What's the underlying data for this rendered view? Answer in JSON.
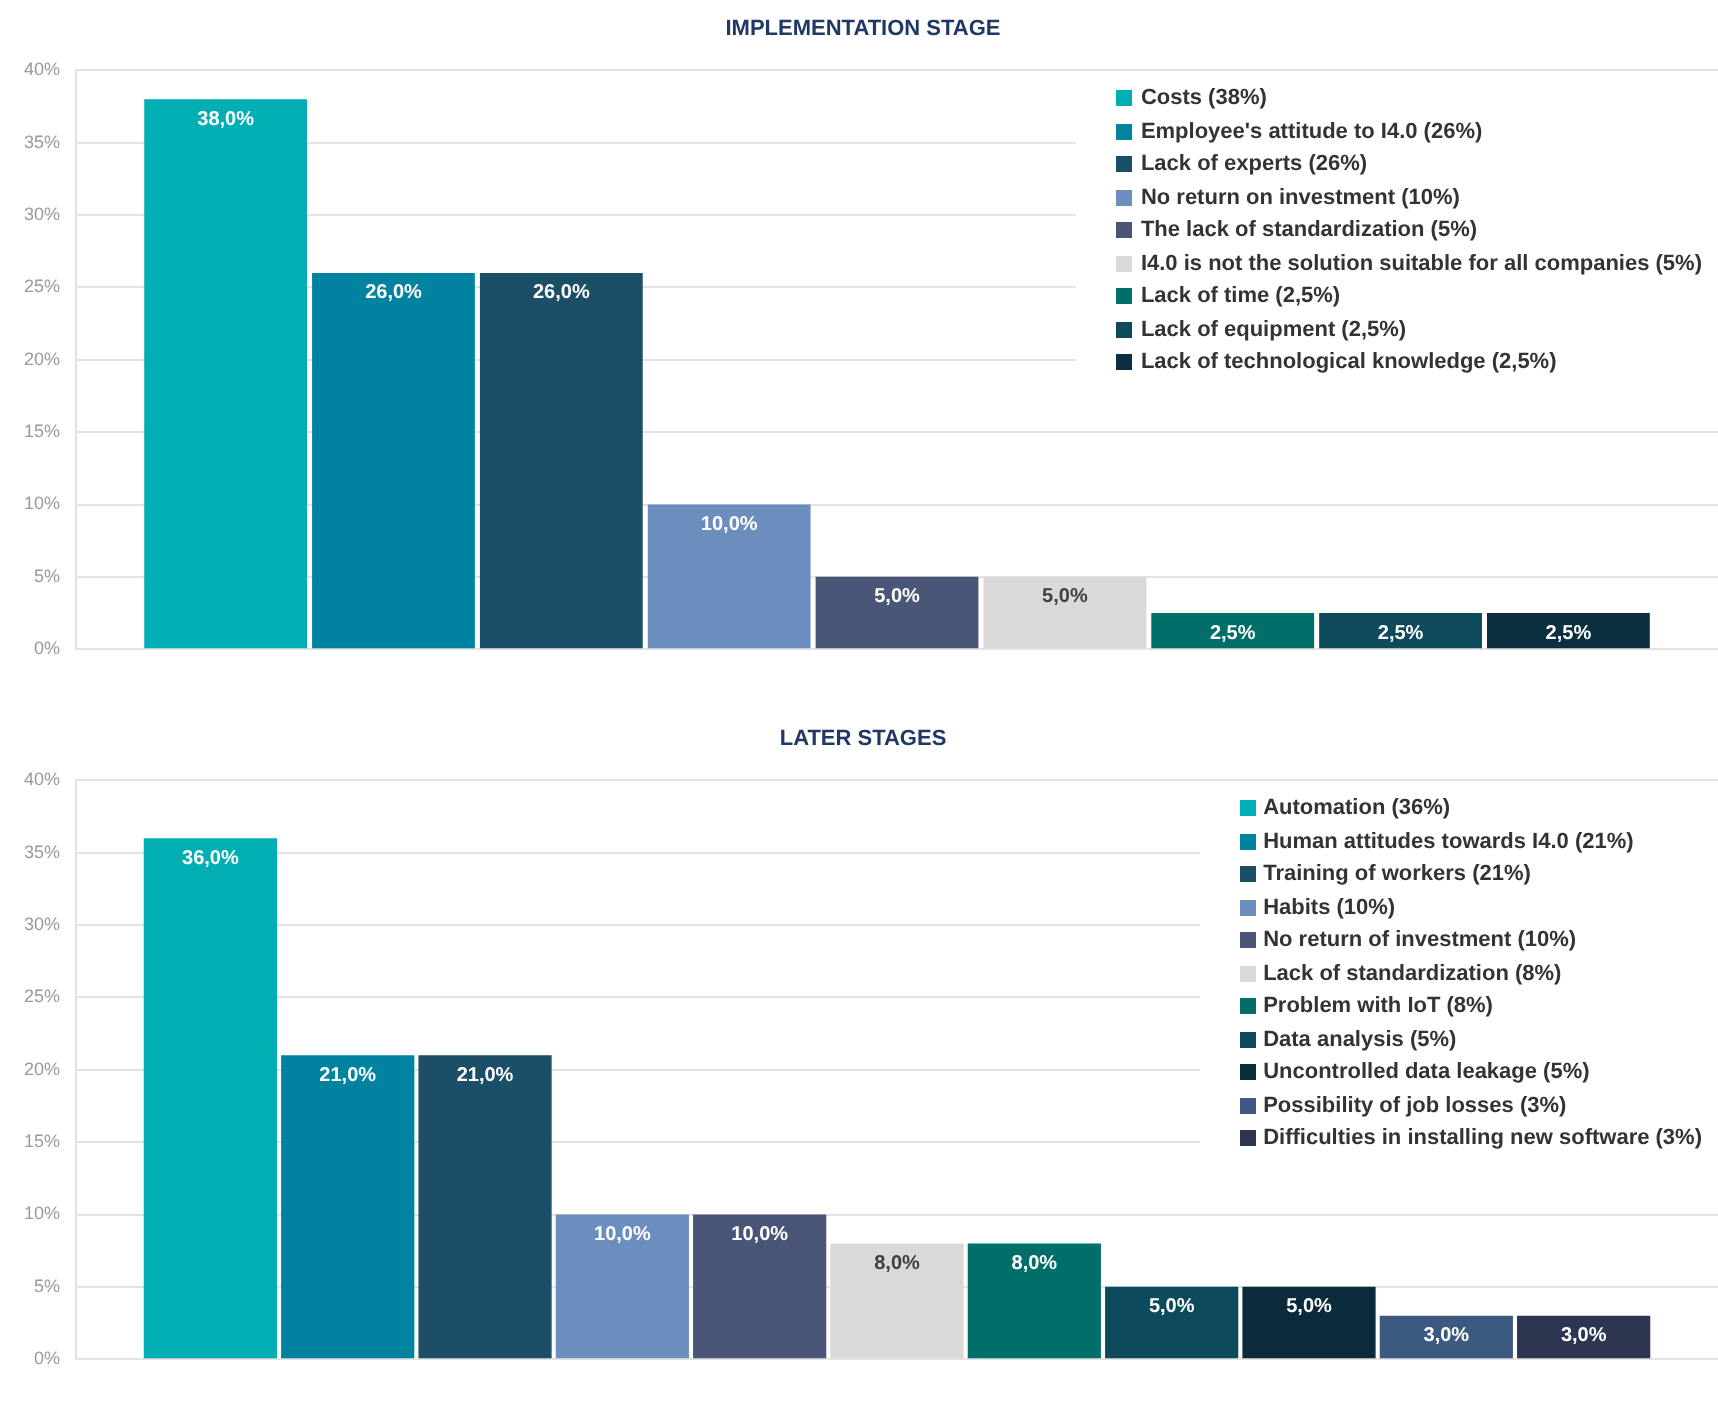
{
  "chart_data": [
    {
      "type": "bar",
      "title": "IMPLEMENTATION STAGE",
      "categories": [
        null
      ],
      "ylim": [
        0,
        40
      ],
      "yticks": [
        {
          "value": 0,
          "label": "0%"
        },
        {
          "value": 5,
          "label": "5%"
        },
        {
          "value": 10,
          "label": "10%"
        },
        {
          "value": 15,
          "label": "15%"
        },
        {
          "value": 20,
          "label": "20%"
        },
        {
          "value": 25,
          "label": "25%"
        },
        {
          "value": 30,
          "label": "30%"
        },
        {
          "value": 35,
          "label": "35%"
        },
        {
          "value": 40,
          "label": "40%"
        }
      ],
      "grid": "y",
      "legend": "top right",
      "series": [
        {
          "name": "Costs (38%)",
          "color": "#00aeb3",
          "values": [
            38
          ],
          "value_labels": [
            "38,0%"
          ]
        },
        {
          "name": "Employee's attitude to I4.0 (26%)",
          "color": "#0083a0",
          "values": [
            26
          ],
          "value_labels": [
            "26,0%"
          ]
        },
        {
          "name": "Lack of experts (26%)",
          "color": "#1b4f67",
          "values": [
            26
          ],
          "value_labels": [
            "26,0%"
          ]
        },
        {
          "name": "No return on investment (10%)",
          "color": "#6c8ebf",
          "values": [
            10
          ],
          "value_labels": [
            "10,0%"
          ]
        },
        {
          "name": "The lack of standardization (5%)",
          "color": "#4a5678",
          "values": [
            5
          ],
          "value_labels": [
            "5,0%"
          ]
        },
        {
          "name": "I4.0 is not the solution suitable for all companies (5%)",
          "color": "#d9d9d9",
          "values": [
            5
          ],
          "value_labels": [
            "5,0%"
          ]
        },
        {
          "name": "Lack of time (2,5%)",
          "color": "#006f6a",
          "values": [
            2.5
          ],
          "value_labels": [
            "2,5%"
          ]
        },
        {
          "name": "Lack of equipment (2,5%)",
          "color": "#0c4a5c",
          "values": [
            2.5
          ],
          "value_labels": [
            "2,5%"
          ]
        },
        {
          "name": "Lack of technological knowledge (2,5%)",
          "color": "#0c2f3f",
          "values": [
            2.5
          ],
          "value_labels": [
            "2,5%"
          ]
        }
      ]
    },
    {
      "type": "bar",
      "title": "LATER STAGES",
      "categories": [
        null
      ],
      "ylim": [
        0,
        40
      ],
      "yticks": [
        {
          "value": 0,
          "label": "0%"
        },
        {
          "value": 5,
          "label": "5%"
        },
        {
          "value": 10,
          "label": "10%"
        },
        {
          "value": 15,
          "label": "15%"
        },
        {
          "value": 20,
          "label": "20%"
        },
        {
          "value": 25,
          "label": "25%"
        },
        {
          "value": 30,
          "label": "30%"
        },
        {
          "value": 35,
          "label": "35%"
        },
        {
          "value": 40,
          "label": "40%"
        }
      ],
      "grid": "y",
      "legend": "top right",
      "series": [
        {
          "name": "Automation (36%)",
          "color": "#00aeb3",
          "values": [
            36
          ],
          "value_labels": [
            "36,0%"
          ]
        },
        {
          "name": "Human attitudes towards I4.0 (21%)",
          "color": "#0083a0",
          "values": [
            21
          ],
          "value_labels": [
            "21,0%"
          ]
        },
        {
          "name": "Training of workers (21%)",
          "color": "#1b4f67",
          "values": [
            21
          ],
          "value_labels": [
            "21,0%"
          ]
        },
        {
          "name": "Habits (10%)",
          "color": "#6c8ebf",
          "values": [
            10
          ],
          "value_labels": [
            "10,0%"
          ]
        },
        {
          "name": "No return of investment (10%)",
          "color": "#4a5678",
          "values": [
            10
          ],
          "value_labels": [
            "10,0%"
          ]
        },
        {
          "name": "Lack of standardization (8%)",
          "color": "#d9d9d9",
          "values": [
            8
          ],
          "value_labels": [
            "8,0%"
          ]
        },
        {
          "name": "Problem with IoT (8%)",
          "color": "#006f6a",
          "values": [
            8
          ],
          "value_labels": [
            "8,0%"
          ]
        },
        {
          "name": "Data analysis (5%)",
          "color": "#0d4a5c",
          "values": [
            5
          ],
          "value_labels": [
            "5,0%"
          ]
        },
        {
          "name": "Uncontrolled data leakage (5%)",
          "color": "#0b2a3a",
          "values": [
            5
          ],
          "value_labels": [
            "5,0%"
          ]
        },
        {
          "name": "Possibility of job losses (3%)",
          "color": "#3c5a80",
          "values": [
            3
          ],
          "value_labels": [
            "3,0%"
          ]
        },
        {
          "name": "Difficulties in installing new software (3%)",
          "color": "#2e3550",
          "values": [
            3
          ],
          "value_labels": [
            "3,0%"
          ]
        }
      ]
    }
  ]
}
